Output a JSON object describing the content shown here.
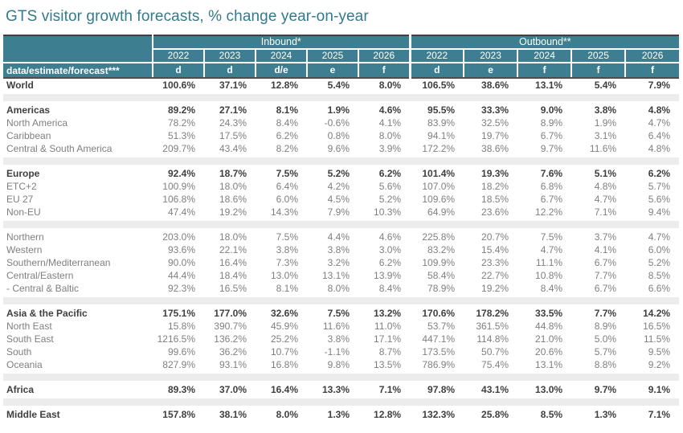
{
  "title": "GTS visitor growth forecasts, % change year-on-year",
  "colors": {
    "header_teal": "#3d7e90",
    "title_teal": "#35798c",
    "bold_text": "#3f3f3f",
    "sub_text": "#7f7f7f",
    "spacer_gray": "#ececec",
    "dark_border": "#404040"
  },
  "table": {
    "group_headers": {
      "inbound": "Inbound*",
      "outbound": "Outbound**"
    },
    "years": [
      "2022",
      "2023",
      "2024",
      "2025",
      "2026"
    ],
    "def_row_label": "data/estimate/forecast***",
    "inbound_def": [
      "d",
      "d",
      "d/e",
      "e",
      "f"
    ],
    "outbound_def": [
      "d",
      "e",
      "f",
      "f",
      "f"
    ],
    "rows": [
      {
        "label": "World",
        "style": "bold",
        "inbound": [
          "100.6%",
          "37.1%",
          "12.8%",
          "5.4%",
          "8.0%"
        ],
        "outbound": [
          "106.5%",
          "38.6%",
          "13.1%",
          "5.4%",
          "7.9%"
        ]
      },
      {
        "style": "spacer"
      },
      {
        "label": "Americas",
        "style": "bold",
        "inbound": [
          "89.2%",
          "27.1%",
          "8.1%",
          "1.9%",
          "4.6%"
        ],
        "outbound": [
          "95.5%",
          "33.3%",
          "9.0%",
          "3.8%",
          "4.8%"
        ]
      },
      {
        "label": "North America",
        "style": "normal",
        "inbound": [
          "78.2%",
          "24.3%",
          "8.4%",
          "-0.6%",
          "4.1%"
        ],
        "outbound": [
          "83.9%",
          "32.5%",
          "8.9%",
          "1.9%",
          "4.7%"
        ]
      },
      {
        "label": "Caribbean",
        "style": "normal",
        "inbound": [
          "51.3%",
          "17.5%",
          "6.2%",
          "0.8%",
          "8.0%"
        ],
        "outbound": [
          "94.1%",
          "19.7%",
          "6.7%",
          "3.1%",
          "6.4%"
        ]
      },
      {
        "label": "Central & South America",
        "style": "normal",
        "inbound": [
          "209.7%",
          "43.4%",
          "8.2%",
          "9.6%",
          "3.9%"
        ],
        "outbound": [
          "172.2%",
          "38.6%",
          "9.7%",
          "11.6%",
          "4.8%"
        ]
      },
      {
        "style": "spacer"
      },
      {
        "label": "Europe",
        "style": "bold",
        "inbound": [
          "92.4%",
          "18.7%",
          "7.5%",
          "5.2%",
          "6.2%"
        ],
        "outbound": [
          "101.4%",
          "19.3%",
          "7.6%",
          "5.1%",
          "6.2%"
        ]
      },
      {
        "label": "ETC+2",
        "style": "normal",
        "inbound": [
          "100.9%",
          "18.0%",
          "6.4%",
          "4.2%",
          "5.6%"
        ],
        "outbound": [
          "107.0%",
          "18.2%",
          "6.8%",
          "4.8%",
          "5.7%"
        ]
      },
      {
        "label": "EU 27",
        "style": "normal",
        "inbound": [
          "106.8%",
          "18.6%",
          "6.0%",
          "4.5%",
          "5.2%"
        ],
        "outbound": [
          "109.6%",
          "18.5%",
          "6.7%",
          "4.7%",
          "5.6%"
        ]
      },
      {
        "label": "Non-EU",
        "style": "normal",
        "inbound": [
          "47.4%",
          "19.2%",
          "14.3%",
          "7.9%",
          "10.3%"
        ],
        "outbound": [
          "64.9%",
          "23.6%",
          "12.2%",
          "7.1%",
          "9.4%"
        ]
      },
      {
        "style": "spacer"
      },
      {
        "label": "Northern",
        "style": "normal",
        "inbound": [
          "203.0%",
          "18.0%",
          "7.5%",
          "4.4%",
          "4.6%"
        ],
        "outbound": [
          "225.8%",
          "20.7%",
          "7.5%",
          "3.7%",
          "4.7%"
        ]
      },
      {
        "label": "Western",
        "style": "normal",
        "inbound": [
          "93.6%",
          "22.1%",
          "3.8%",
          "3.8%",
          "3.0%"
        ],
        "outbound": [
          "83.2%",
          "15.4%",
          "4.7%",
          "4.1%",
          "6.0%"
        ]
      },
      {
        "label": "Southern/Mediterranean",
        "style": "normal",
        "inbound": [
          "90.0%",
          "16.4%",
          "7.3%",
          "3.2%",
          "6.2%"
        ],
        "outbound": [
          "109.9%",
          "23.3%",
          "11.1%",
          "6.7%",
          "5.2%"
        ]
      },
      {
        "label": "Central/Eastern",
        "style": "normal",
        "inbound": [
          "44.4%",
          "18.4%",
          "13.0%",
          "13.1%",
          "13.9%"
        ],
        "outbound": [
          "58.4%",
          "22.7%",
          "10.8%",
          "7.7%",
          "8.5%"
        ]
      },
      {
        "label": " - Central & Baltic",
        "style": "normal",
        "inbound": [
          "92.3%",
          "16.5%",
          "8.1%",
          "8.0%",
          "8.4%"
        ],
        "outbound": [
          "78.9%",
          "19.2%",
          "8.4%",
          "6.7%",
          "6.6%"
        ]
      },
      {
        "style": "spacer"
      },
      {
        "label": "Asia & the Pacific",
        "style": "bold",
        "inbound": [
          "175.1%",
          "177.0%",
          "32.6%",
          "7.5%",
          "13.2%"
        ],
        "outbound": [
          "170.6%",
          "178.2%",
          "33.5%",
          "7.7%",
          "14.2%"
        ]
      },
      {
        "label": "North East",
        "style": "normal",
        "inbound": [
          "15.8%",
          "390.7%",
          "45.9%",
          "11.6%",
          "11.0%"
        ],
        "outbound": [
          "53.7%",
          "361.5%",
          "44.8%",
          "8.9%",
          "16.5%"
        ]
      },
      {
        "label": "South East",
        "style": "normal",
        "inbound": [
          "1216.5%",
          "136.2%",
          "25.2%",
          "3.8%",
          "17.1%"
        ],
        "outbound": [
          "447.1%",
          "114.8%",
          "21.0%",
          "5.0%",
          "11.5%"
        ]
      },
      {
        "label": "South",
        "style": "normal",
        "inbound": [
          "99.6%",
          "36.2%",
          "10.7%",
          "-1.1%",
          "8.7%"
        ],
        "outbound": [
          "173.5%",
          "50.7%",
          "20.6%",
          "5.7%",
          "9.5%"
        ]
      },
      {
        "label": "Oceania",
        "style": "normal",
        "inbound": [
          "827.9%",
          "93.1%",
          "16.8%",
          "9.8%",
          "13.5%"
        ],
        "outbound": [
          "786.9%",
          "75.4%",
          "13.1%",
          "8.8%",
          "9.2%"
        ]
      },
      {
        "style": "spacer"
      },
      {
        "label": "Africa",
        "style": "bold",
        "inbound": [
          "89.3%",
          "37.0%",
          "16.4%",
          "13.3%",
          "7.1%"
        ],
        "outbound": [
          "97.8%",
          "43.1%",
          "13.0%",
          "9.7%",
          "9.1%"
        ]
      },
      {
        "style": "spacer"
      },
      {
        "label": "Middle East",
        "style": "bold",
        "inbound": [
          "157.8%",
          "38.1%",
          "8.0%",
          "1.3%",
          "12.8%"
        ],
        "outbound": [
          "132.3%",
          "25.8%",
          "8.5%",
          "1.3%",
          "7.1%"
        ]
      }
    ]
  }
}
